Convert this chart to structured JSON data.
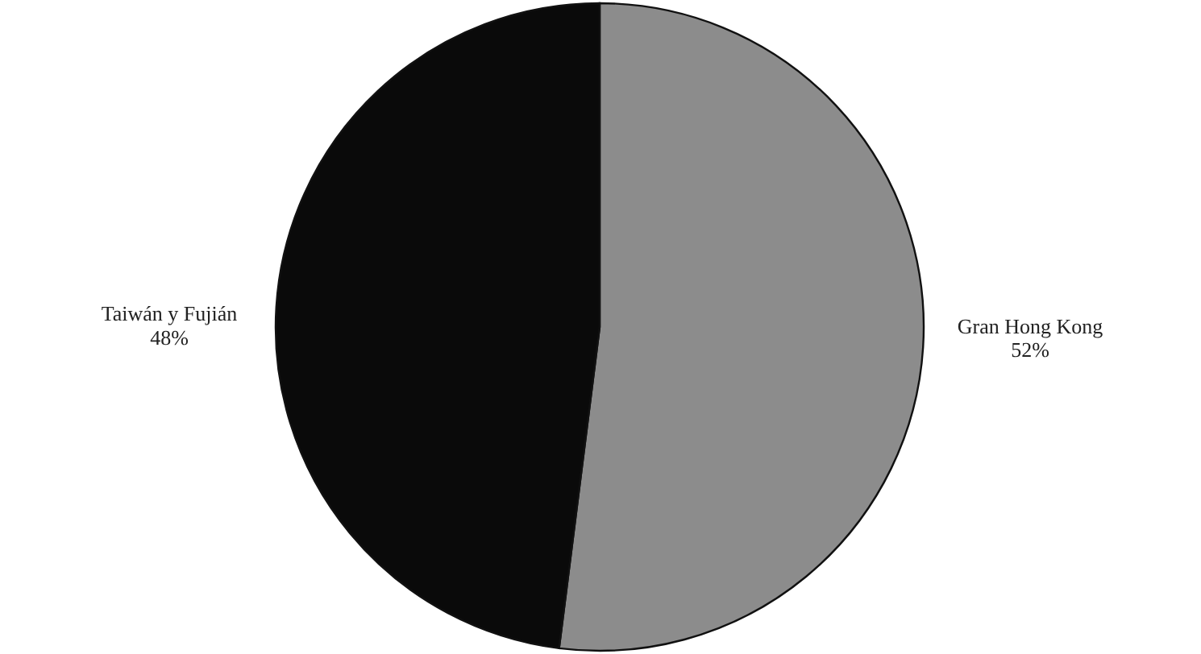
{
  "chart_data": {
    "type": "pie",
    "categories": [
      "Gran Hong Kong",
      "Taiwán y Fujián"
    ],
    "values": [
      52,
      48
    ],
    "colors": [
      "#8c8c8c",
      "#0a0a0a"
    ],
    "value_labels": [
      "52%",
      "48%"
    ]
  }
}
